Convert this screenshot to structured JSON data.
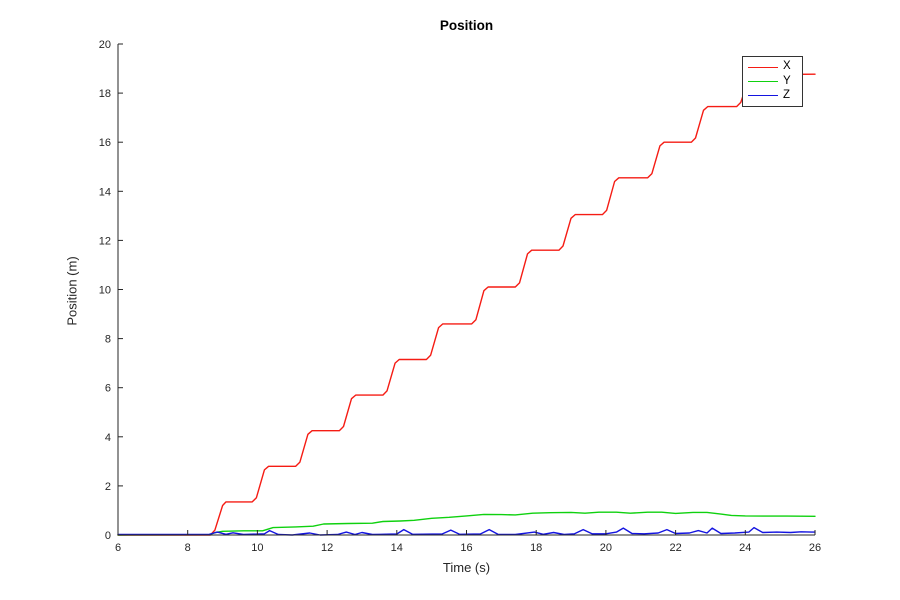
{
  "chart_data": {
    "type": "line",
    "title": "Position",
    "xlabel": "Time (s)",
    "ylabel": "Position (m)",
    "xlim": [
      6,
      26
    ],
    "ylim": [
      0,
      20
    ],
    "xticks": [
      6,
      8,
      10,
      12,
      14,
      16,
      18,
      20,
      22,
      24,
      26
    ],
    "yticks": [
      0,
      2,
      4,
      6,
      8,
      10,
      12,
      14,
      16,
      18,
      20
    ],
    "grid": false,
    "axis_color": "#262626",
    "legend": {
      "position": "northeast",
      "entries": [
        "X",
        "Y",
        "Z"
      ]
    },
    "series": [
      {
        "name": "X",
        "color": "#f51c14",
        "points": [
          [
            6,
            0
          ],
          [
            8.65,
            0
          ],
          [
            8.78,
            0.2
          ],
          [
            9.0,
            1.2
          ],
          [
            9.1,
            1.35
          ],
          [
            9.85,
            1.35
          ],
          [
            9.97,
            1.52
          ],
          [
            10.2,
            2.65
          ],
          [
            10.32,
            2.8
          ],
          [
            11.1,
            2.8
          ],
          [
            11.22,
            2.97
          ],
          [
            11.45,
            4.1
          ],
          [
            11.57,
            4.25
          ],
          [
            12.35,
            4.25
          ],
          [
            12.47,
            4.42
          ],
          [
            12.7,
            5.55
          ],
          [
            12.82,
            5.7
          ],
          [
            13.6,
            5.7
          ],
          [
            13.72,
            5.87
          ],
          [
            13.95,
            7.0
          ],
          [
            14.07,
            7.15
          ],
          [
            14.85,
            7.15
          ],
          [
            14.97,
            7.32
          ],
          [
            15.2,
            8.45
          ],
          [
            15.32,
            8.6
          ],
          [
            16.15,
            8.6
          ],
          [
            16.27,
            8.77
          ],
          [
            16.5,
            9.95
          ],
          [
            16.62,
            10.1
          ],
          [
            17.4,
            10.1
          ],
          [
            17.52,
            10.27
          ],
          [
            17.75,
            11.45
          ],
          [
            17.87,
            11.6
          ],
          [
            18.65,
            11.6
          ],
          [
            18.77,
            11.77
          ],
          [
            19.0,
            12.9
          ],
          [
            19.12,
            13.05
          ],
          [
            19.9,
            13.05
          ],
          [
            20.02,
            13.22
          ],
          [
            20.25,
            14.4
          ],
          [
            20.37,
            14.55
          ],
          [
            21.2,
            14.55
          ],
          [
            21.32,
            14.72
          ],
          [
            21.55,
            15.85
          ],
          [
            21.67,
            16.0
          ],
          [
            22.45,
            16.0
          ],
          [
            22.57,
            16.17
          ],
          [
            22.8,
            17.3
          ],
          [
            22.92,
            17.45
          ],
          [
            23.75,
            17.45
          ],
          [
            23.87,
            17.62
          ],
          [
            24.1,
            18.6
          ],
          [
            24.25,
            18.75
          ],
          [
            26,
            18.77
          ]
        ]
      },
      {
        "name": "Y",
        "color": "#0fd10f",
        "points": [
          [
            6,
            0
          ],
          [
            8.6,
            0.01
          ],
          [
            8.8,
            0.1
          ],
          [
            9.0,
            0.15
          ],
          [
            9.6,
            0.17
          ],
          [
            10.15,
            0.17
          ],
          [
            10.45,
            0.3
          ],
          [
            11.1,
            0.33
          ],
          [
            11.6,
            0.36
          ],
          [
            11.9,
            0.45
          ],
          [
            12.6,
            0.47
          ],
          [
            13.3,
            0.48
          ],
          [
            13.6,
            0.55
          ],
          [
            14.1,
            0.57
          ],
          [
            14.5,
            0.6
          ],
          [
            15.0,
            0.68
          ],
          [
            15.5,
            0.72
          ],
          [
            16.0,
            0.78
          ],
          [
            16.5,
            0.84
          ],
          [
            17.0,
            0.83
          ],
          [
            17.4,
            0.82
          ],
          [
            17.9,
            0.89
          ],
          [
            18.4,
            0.91
          ],
          [
            19.0,
            0.92
          ],
          [
            19.4,
            0.89
          ],
          [
            19.8,
            0.93
          ],
          [
            20.3,
            0.93
          ],
          [
            20.7,
            0.89
          ],
          [
            21.2,
            0.93
          ],
          [
            21.6,
            0.93
          ],
          [
            22.0,
            0.88
          ],
          [
            22.5,
            0.92
          ],
          [
            22.9,
            0.92
          ],
          [
            23.3,
            0.85
          ],
          [
            23.6,
            0.8
          ],
          [
            24.0,
            0.78
          ],
          [
            24.6,
            0.77
          ],
          [
            25.2,
            0.77
          ],
          [
            26,
            0.76
          ]
        ]
      },
      {
        "name": "Z",
        "color": "#1414e0",
        "points": [
          [
            6,
            0.02
          ],
          [
            8.6,
            0.02
          ],
          [
            8.85,
            0.12
          ],
          [
            9.1,
            0.03
          ],
          [
            9.3,
            0.09
          ],
          [
            9.6,
            0.02
          ],
          [
            10.2,
            0.05
          ],
          [
            10.35,
            0.18
          ],
          [
            10.6,
            0.02
          ],
          [
            11.0,
            0.0
          ],
          [
            11.5,
            0.08
          ],
          [
            11.8,
            0.0
          ],
          [
            12.3,
            0.02
          ],
          [
            12.55,
            0.12
          ],
          [
            12.8,
            0.02
          ],
          [
            13.0,
            0.1
          ],
          [
            13.3,
            0.02
          ],
          [
            14.0,
            0.04
          ],
          [
            14.2,
            0.22
          ],
          [
            14.45,
            0.03
          ],
          [
            15.3,
            0.04
          ],
          [
            15.55,
            0.2
          ],
          [
            15.8,
            0.03
          ],
          [
            16.4,
            0.04
          ],
          [
            16.65,
            0.22
          ],
          [
            16.9,
            0.03
          ],
          [
            17.4,
            0.02
          ],
          [
            17.95,
            0.12
          ],
          [
            18.2,
            0.03
          ],
          [
            18.5,
            0.1
          ],
          [
            18.8,
            0.02
          ],
          [
            19.1,
            0.05
          ],
          [
            19.35,
            0.22
          ],
          [
            19.6,
            0.05
          ],
          [
            20.0,
            0.05
          ],
          [
            20.3,
            0.12
          ],
          [
            20.5,
            0.28
          ],
          [
            20.75,
            0.06
          ],
          [
            21.1,
            0.05
          ],
          [
            21.5,
            0.08
          ],
          [
            21.75,
            0.22
          ],
          [
            22.0,
            0.06
          ],
          [
            22.4,
            0.08
          ],
          [
            22.65,
            0.18
          ],
          [
            22.9,
            0.08
          ],
          [
            23.05,
            0.28
          ],
          [
            23.3,
            0.06
          ],
          [
            23.7,
            0.08
          ],
          [
            24.1,
            0.12
          ],
          [
            24.25,
            0.3
          ],
          [
            24.5,
            0.1
          ],
          [
            24.9,
            0.12
          ],
          [
            25.3,
            0.1
          ],
          [
            25.6,
            0.13
          ],
          [
            25.9,
            0.12
          ],
          [
            26,
            0.12
          ]
        ]
      }
    ]
  }
}
